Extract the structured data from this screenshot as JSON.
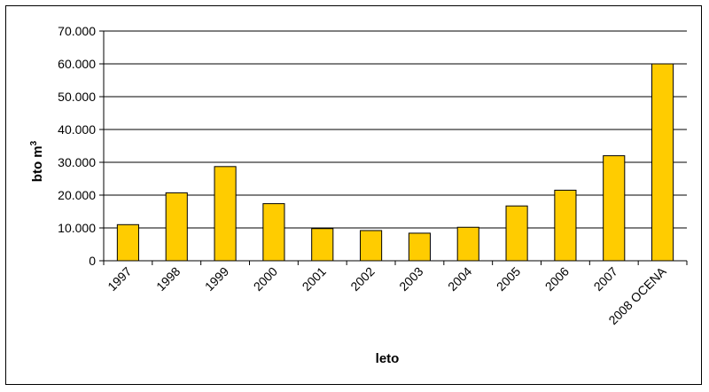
{
  "chart_data": {
    "type": "bar",
    "title": "",
    "xlabel": "leto",
    "ylabel": "bto m",
    "ylabel_superscript": "3",
    "categories": [
      "1997",
      "1998",
      "1999",
      "2000",
      "2001",
      "2002",
      "2003",
      "2004",
      "2005",
      "2006",
      "2007",
      "2008 OCENA"
    ],
    "values": [
      11000,
      20700,
      28700,
      17400,
      9800,
      9200,
      8400,
      10200,
      16700,
      21500,
      32000,
      60000
    ],
    "ylim": [
      0,
      70000
    ],
    "yticks": [
      0,
      10000,
      20000,
      30000,
      40000,
      50000,
      60000,
      70000
    ],
    "ytick_labels": [
      "0",
      "10.000",
      "20.000",
      "30.000",
      "40.000",
      "50.000",
      "60.000",
      "70.000"
    ],
    "grid": true,
    "bar_color": "#FFCC00",
    "bar_edge_color": "#000000"
  }
}
